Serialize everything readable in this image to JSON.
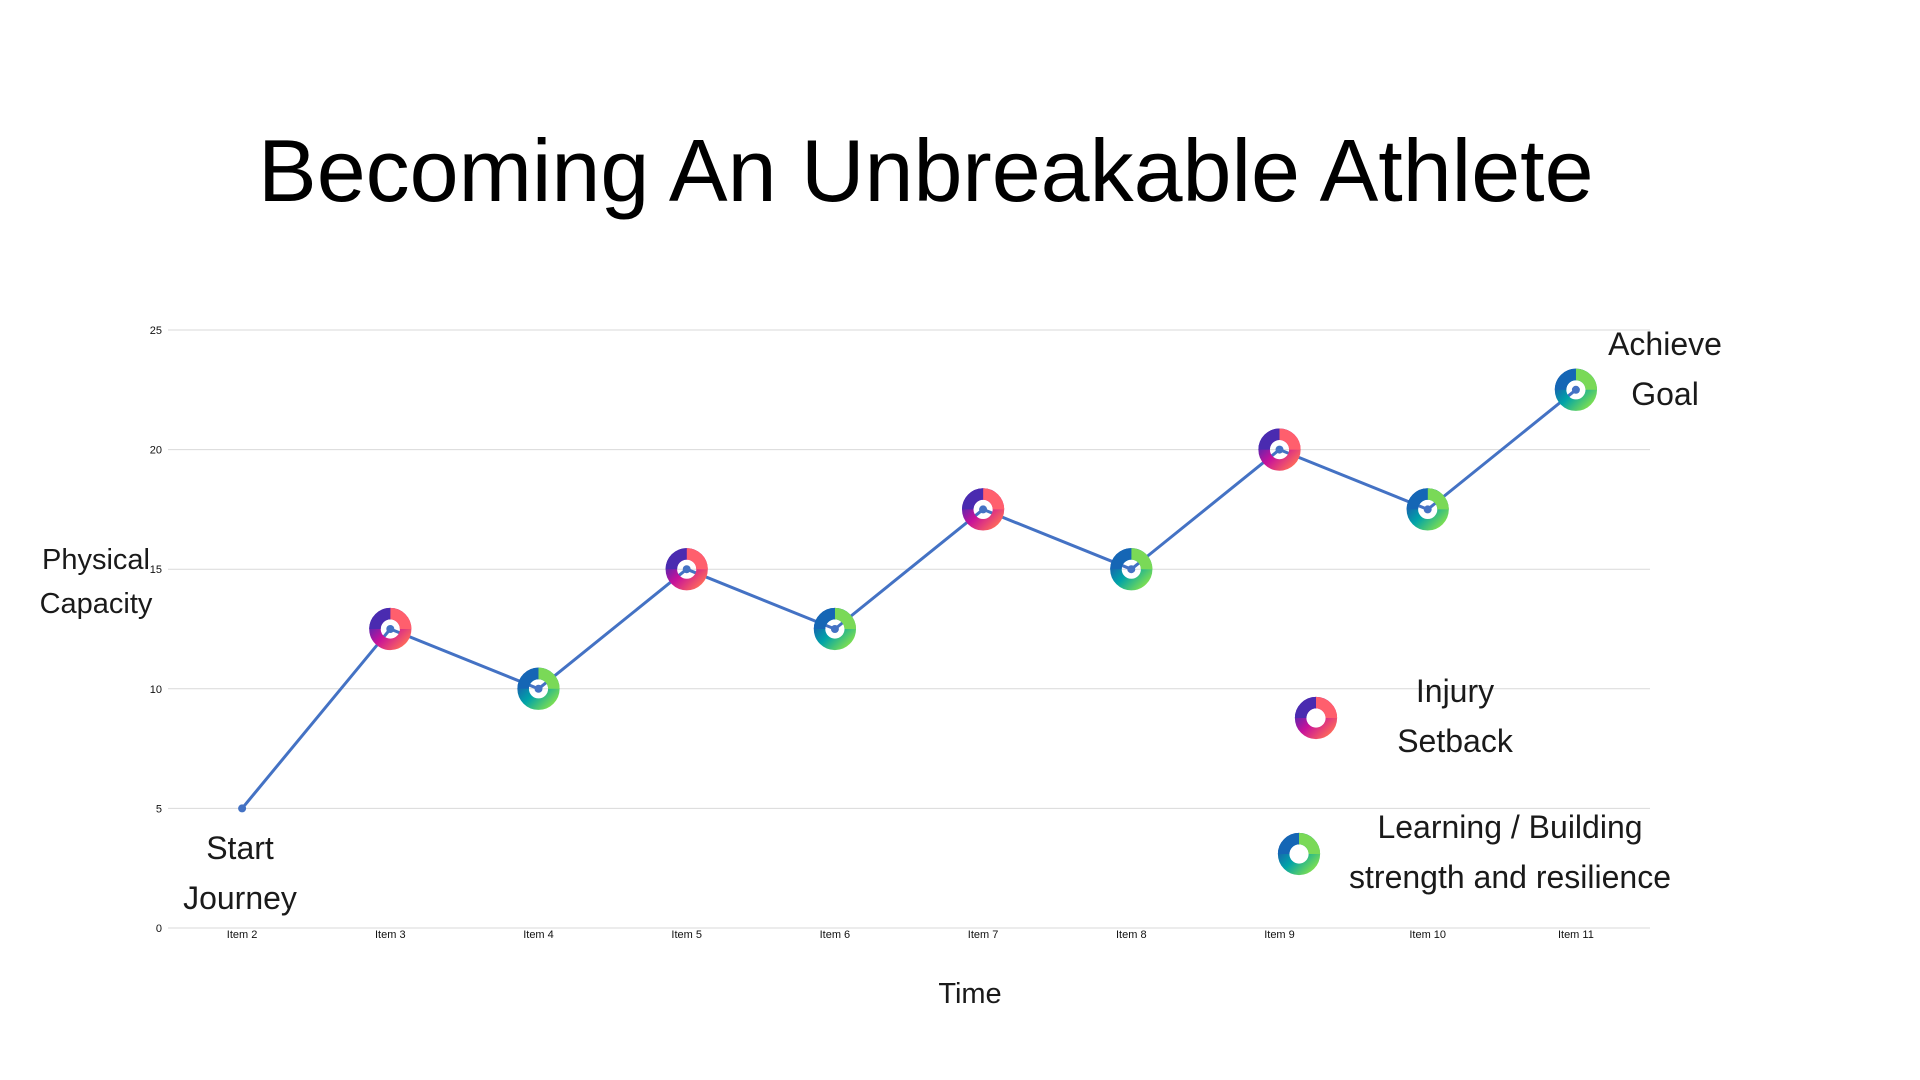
{
  "slide": {
    "title": "Becoming An Unbreakable Athlete"
  },
  "annotations": {
    "start_line1": "Start",
    "start_line2": "Journey",
    "goal_line1": "Achieve",
    "goal_line2": "Goal"
  },
  "legend": {
    "setback_line1": "Injury",
    "setback_line2": "Setback",
    "learning_line1": "Learning / Building",
    "learning_line2": "strength and resilience"
  },
  "chart_data": {
    "type": "line",
    "xlabel": "Time",
    "ylabel_line1": "Physical",
    "ylabel_line2": "Capacity",
    "categories": [
      "Item 2",
      "Item 3",
      "Item 4",
      "Item 5",
      "Item 6",
      "Item 7",
      "Item 8",
      "Item 9",
      "Item 10",
      "Item 11"
    ],
    "series": [
      {
        "values": [
          5,
          12.5,
          10,
          15,
          12.5,
          17.5,
          15,
          20,
          17.5,
          22.5
        ],
        "markers": [
          "none",
          "setback",
          "learning",
          "setback",
          "learning",
          "setback",
          "learning",
          "setback",
          "learning",
          "learning"
        ]
      }
    ],
    "ylim": [
      0,
      25
    ],
    "yticks": [
      "0",
      "5",
      "10",
      "15",
      "20",
      "25"
    ],
    "grid": true,
    "line_color": "#4472C4",
    "gridline_color": "#d9d9d9"
  }
}
